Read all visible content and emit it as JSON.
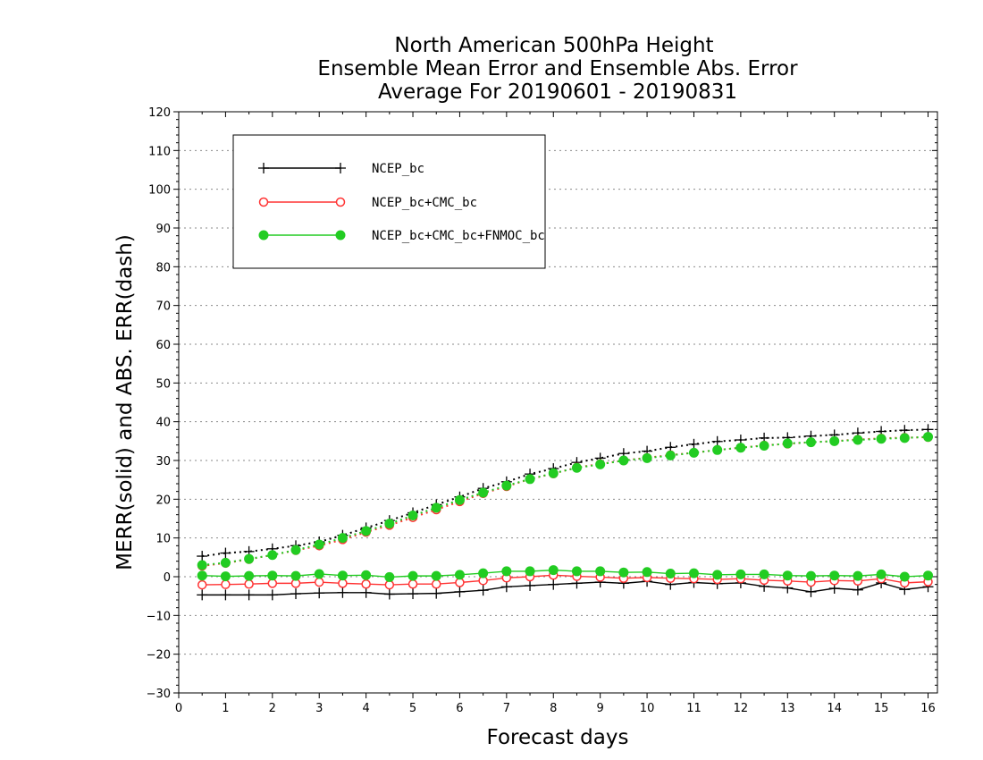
{
  "chart_data": {
    "type": "line",
    "title": [
      "North American 500hPa Height",
      "Ensemble Mean Error and Ensemble Abs. Error",
      "Average For 20190601 - 20190831"
    ],
    "xlabel": "Forecast days",
    "ylabel": "MERR(solid) and ABS. ERR(dash)",
    "xlim": [
      0,
      16.2
    ],
    "ylim": [
      -30,
      120
    ],
    "xticks": [
      0,
      1,
      2,
      3,
      4,
      5,
      6,
      7,
      8,
      9,
      10,
      11,
      12,
      13,
      14,
      15,
      16
    ],
    "yticks": [
      -30,
      -20,
      -10,
      0,
      10,
      20,
      30,
      40,
      50,
      60,
      70,
      80,
      90,
      100,
      110,
      120
    ],
    "grid": true,
    "legend_position": "top-left",
    "x": [
      0.5,
      1,
      1.5,
      2,
      2.5,
      3,
      3.5,
      4,
      4.5,
      5,
      5.5,
      6,
      6.5,
      7,
      7.5,
      8,
      8.5,
      9,
      9.5,
      10,
      10.5,
      11,
      11.5,
      12,
      12.5,
      13,
      13.5,
      14,
      14.5,
      15,
      15.5,
      16
    ],
    "series": [
      {
        "name": "NCEP_bc",
        "color": "#000000",
        "marker": "plus",
        "merr": [
          -4.7,
          -4.7,
          -4.7,
          -4.7,
          -4.4,
          -4.2,
          -4.1,
          -4.1,
          -4.5,
          -4.4,
          -4.3,
          -3.9,
          -3.5,
          -2.6,
          -2.3,
          -2.0,
          -1.7,
          -1.4,
          -1.7,
          -1.2,
          -2.0,
          -1.5,
          -1.8,
          -1.6,
          -2.5,
          -2.9,
          -3.9,
          -3.0,
          -3.4,
          -1.6,
          -3.3,
          -2.6
        ],
        "abs_err": [
          5.3,
          6.1,
          6.5,
          7.2,
          8.0,
          9.0,
          10.7,
          12.6,
          14.5,
          16.5,
          18.6,
          20.6,
          22.8,
          24.5,
          26.5,
          27.9,
          29.5,
          30.6,
          31.8,
          32.4,
          33.4,
          34.2,
          34.9,
          35.3,
          35.8,
          35.9,
          36.3,
          36.6,
          37.1,
          37.5,
          37.8,
          38.0
        ]
      },
      {
        "name": "NCEP_bc+CMC_bc",
        "color": "#ff3333",
        "marker": "open-circle",
        "merr": [
          -2.1,
          -2.0,
          -1.9,
          -1.7,
          -1.7,
          -1.4,
          -1.7,
          -1.9,
          -2.1,
          -1.9,
          -1.9,
          -1.5,
          -1.0,
          -0.3,
          0.0,
          0.4,
          0.1,
          -0.1,
          -0.4,
          -0.2,
          -0.4,
          -0.5,
          -0.7,
          -0.5,
          -0.9,
          -1.1,
          -1.4,
          -1.0,
          -1.1,
          -0.5,
          -1.6,
          -1.3
        ],
        "abs_err": [
          2.8,
          3.5,
          4.5,
          5.6,
          6.8,
          8.0,
          9.6,
          11.5,
          13.3,
          15.3,
          17.3,
          19.4,
          21.5,
          23.3,
          25.2,
          26.6,
          28.2,
          29.1,
          30.0,
          30.7,
          31.4,
          32.0,
          32.7,
          33.3,
          33.9,
          34.3,
          34.7,
          35.0,
          35.4,
          35.7,
          35.9,
          36.0
        ]
      },
      {
        "name": "NCEP_bc+CMC_bc+FNMOC_bc",
        "color": "#22cc22",
        "marker": "filled-circle",
        "merr": [
          0.3,
          0.1,
          0.2,
          0.3,
          0.2,
          0.7,
          0.3,
          0.4,
          -0.1,
          0.2,
          0.2,
          0.5,
          0.9,
          1.4,
          1.4,
          1.7,
          1.4,
          1.4,
          1.1,
          1.2,
          0.8,
          0.9,
          0.5,
          0.6,
          0.6,
          0.3,
          0.2,
          0.3,
          0.2,
          0.6,
          0.0,
          0.3
        ],
        "abs_err": [
          3.0,
          3.6,
          4.6,
          5.6,
          6.9,
          8.3,
          10.0,
          11.8,
          13.7,
          15.8,
          17.8,
          19.8,
          21.7,
          23.5,
          25.2,
          26.7,
          28.1,
          29.0,
          30.0,
          30.6,
          31.3,
          32.0,
          32.7,
          33.3,
          33.8,
          34.4,
          34.7,
          35.0,
          35.3,
          35.6,
          35.8,
          36.1
        ]
      }
    ]
  }
}
